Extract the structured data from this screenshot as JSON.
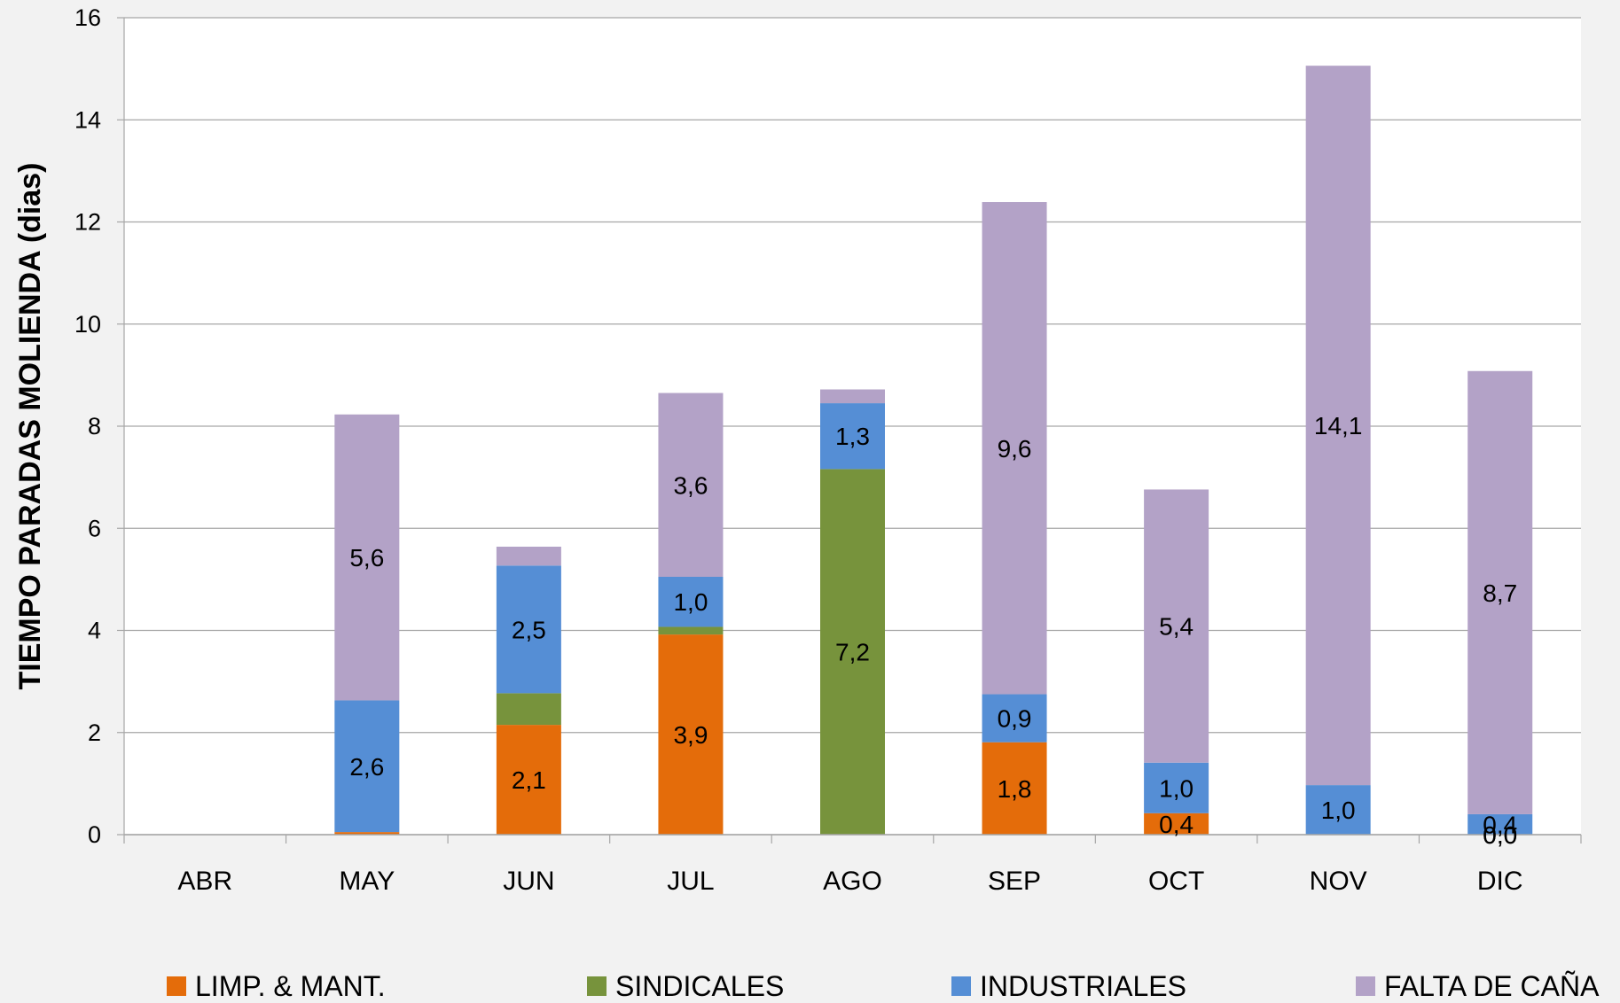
{
  "chart_data": {
    "type": "bar",
    "stacked": true,
    "title": "",
    "xlabel": "",
    "ylabel": "TIEMPO PARADAS MOLIENDA (dias)",
    "ylim": [
      0,
      16
    ],
    "yticks": [
      0,
      2,
      4,
      6,
      8,
      10,
      12,
      14,
      16
    ],
    "grid": true,
    "legend_position": "bottom",
    "categories": [
      "ABR",
      "MAY",
      "JUN",
      "JUL",
      "AGO",
      "SEP",
      "OCT",
      "NOV",
      "DIC"
    ],
    "series": [
      {
        "name": "LIMP. & MANT.",
        "color": "#e46c0a",
        "values": [
          0,
          0.05,
          2.15,
          3.92,
          0,
          1.81,
          0.42,
          0,
          0
        ],
        "labels": [
          "",
          "",
          "2,1",
          "3,9",
          "",
          "1,8",
          "0,4",
          "",
          "0,0"
        ]
      },
      {
        "name": "SINDICALES",
        "color": "#77933c",
        "values": [
          0,
          0,
          0.62,
          0.15,
          7.16,
          0,
          0,
          0,
          0
        ],
        "labels": [
          "",
          "",
          "",
          "",
          "7,2",
          "",
          "",
          "",
          "0,0"
        ]
      },
      {
        "name": "INDUSTRIALES",
        "color": "#558ed5",
        "values": [
          0,
          2.58,
          2.5,
          0.98,
          1.29,
          0.94,
          0.99,
          0.97,
          0.4
        ],
        "labels": [
          "",
          "2,6",
          "2,5",
          "1,0",
          "1,3",
          "0,9",
          "1,0",
          "1,0",
          "0,4"
        ]
      },
      {
        "name": "FALTA DE CAÑA",
        "color": "#b3a2c7",
        "values": [
          0,
          5.6,
          0.37,
          3.6,
          0.27,
          9.64,
          5.35,
          14.09,
          8.68
        ],
        "labels": [
          "",
          "5,6",
          "",
          "3,6",
          "",
          "9,6",
          "5,4",
          "14,1",
          "8,7"
        ]
      }
    ]
  }
}
